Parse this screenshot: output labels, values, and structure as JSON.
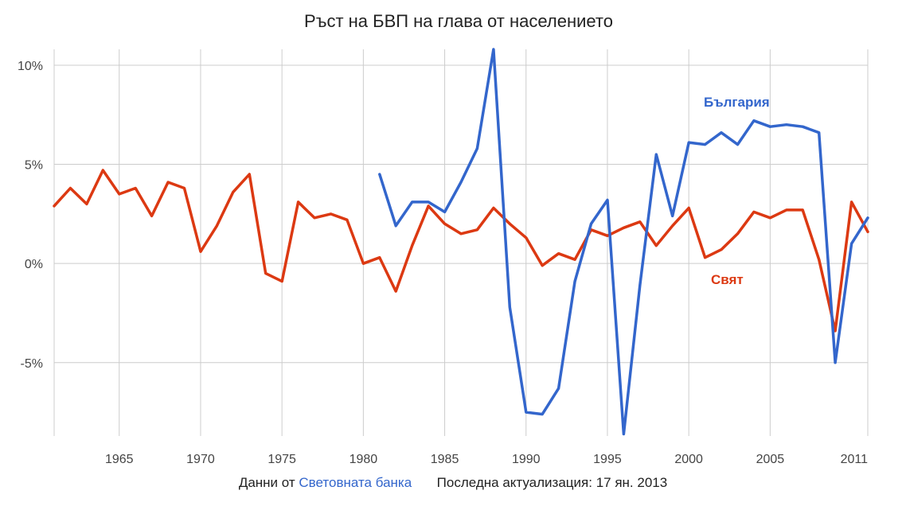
{
  "footer": {
    "source_prefix": "Данни от",
    "source_link": "Световната банка",
    "updated": "Последна актуализация: 17 ян. 2013"
  },
  "chart_data": {
    "type": "line",
    "title": "Ръст на БВП на глава от населението",
    "xlabel": "",
    "ylabel": "",
    "xlim": [
      1961,
      2011
    ],
    "ylim": [
      -8.7,
      10.8
    ],
    "x_ticks": [
      1965,
      1970,
      1975,
      1980,
      1985,
      1990,
      1995,
      2000,
      2005,
      2011
    ],
    "x_tick_labels": [
      "1965",
      "1970",
      "1975",
      "1980",
      "1985",
      "1990",
      "1995",
      "2000",
      "2005",
      "2011"
    ],
    "y_ticks": [
      -5,
      0,
      5,
      10
    ],
    "y_tick_labels": [
      "-5%",
      "0%",
      "5%",
      "10%"
    ],
    "grid": true,
    "series": [
      {
        "name": "Свят",
        "color": "#dc3912",
        "x": [
          1961,
          1962,
          1963,
          1964,
          1965,
          1966,
          1967,
          1968,
          1969,
          1970,
          1971,
          1972,
          1973,
          1974,
          1975,
          1976,
          1977,
          1978,
          1979,
          1980,
          1981,
          1982,
          1983,
          1984,
          1985,
          1986,
          1987,
          1988,
          1989,
          1990,
          1991,
          1992,
          1993,
          1994,
          1995,
          1996,
          1997,
          1998,
          1999,
          2000,
          2001,
          2002,
          2003,
          2004,
          2005,
          2006,
          2007,
          2008,
          2009,
          2010,
          2011
        ],
        "y": [
          2.9,
          3.8,
          3.0,
          4.7,
          3.5,
          3.8,
          2.4,
          4.1,
          3.8,
          0.6,
          1.9,
          3.6,
          4.5,
          -0.5,
          -0.9,
          3.1,
          2.3,
          2.5,
          2.2,
          0.0,
          0.3,
          -1.4,
          0.9,
          2.9,
          2.0,
          1.5,
          1.7,
          2.8,
          2.0,
          1.3,
          -0.1,
          0.5,
          0.2,
          1.7,
          1.4,
          1.8,
          2.1,
          0.9,
          1.9,
          2.8,
          0.3,
          0.7,
          1.5,
          2.6,
          2.3,
          2.7,
          2.7,
          0.2,
          -3.4,
          3.1,
          1.6
        ]
      },
      {
        "name": "България",
        "color": "#3366cc",
        "x": [
          1981,
          1982,
          1983,
          1984,
          1985,
          1986,
          1987,
          1988,
          1989,
          1990,
          1991,
          1992,
          1993,
          1994,
          1995,
          1996,
          1997,
          1998,
          1999,
          2000,
          2001,
          2002,
          2003,
          2004,
          2005,
          2006,
          2007,
          2008,
          2009,
          2010,
          2011
        ],
        "y": [
          4.5,
          1.9,
          3.1,
          3.1,
          2.6,
          4.1,
          5.8,
          10.8,
          -2.2,
          -7.5,
          -7.6,
          -6.3,
          -0.9,
          2.0,
          3.2,
          -8.6,
          -1.1,
          5.5,
          2.4,
          6.1,
          6.0,
          6.6,
          6.0,
          7.2,
          6.9,
          7.0,
          6.9,
          6.6,
          -5.0,
          1.0,
          2.3
        ]
      }
    ]
  }
}
